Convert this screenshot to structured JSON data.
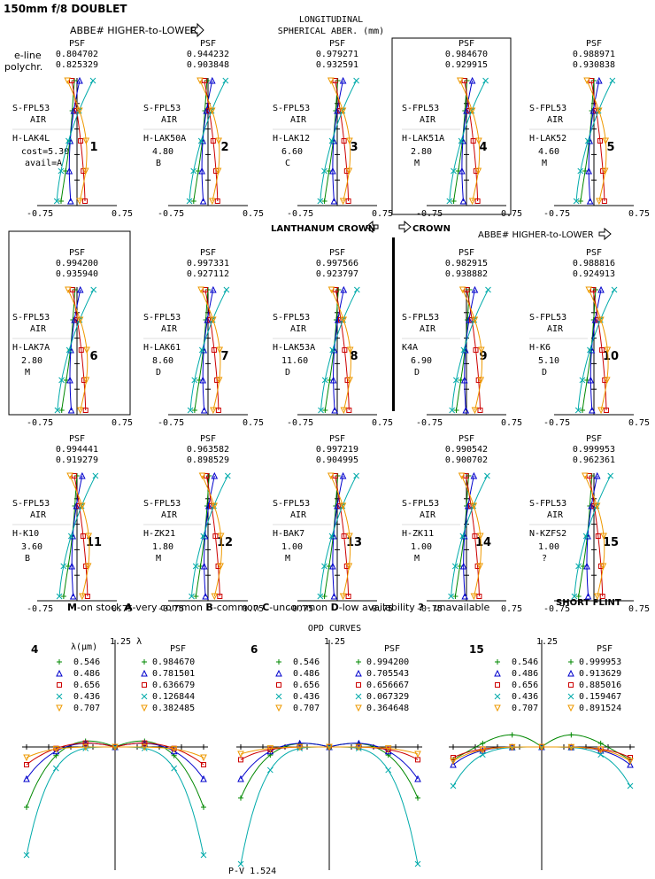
{
  "header": {
    "title": "150mm f/8 DOUBLET",
    "abbe_top": "ABBE# HIGHER-to-LOWER",
    "lsa_title_1": "LONGITUDINAL",
    "lsa_title_2": "SPHERICAL ABER. (mm)",
    "eline": "e-line",
    "polychr": "polychr."
  },
  "panel_labels": {
    "psf": "PSF",
    "front": "S-FPL53",
    "air": "AIR",
    "axis_min": "-0.75",
    "axis_max": "0.75"
  },
  "panels": [
    {
      "num": "1",
      "psf_e": "0.804702",
      "psf_p": "0.825329",
      "glass": "H-LAK4L",
      "cost": "cost=5.30",
      "avail": "avail=A"
    },
    {
      "num": "2",
      "psf_e": "0.944232",
      "psf_p": "0.903848",
      "glass": "H-LAK50A",
      "cost": "4.80",
      "avail": "B"
    },
    {
      "num": "3",
      "psf_e": "0.979271",
      "psf_p": "0.932591",
      "glass": "H-LAK12",
      "cost": "6.60",
      "avail": "C"
    },
    {
      "num": "4",
      "psf_e": "0.984670",
      "psf_p": "0.929915",
      "glass": "H-LAK51A",
      "cost": "2.80",
      "avail": "M"
    },
    {
      "num": "5",
      "psf_e": "0.988971",
      "psf_p": "0.930838",
      "glass": "H-LAK52",
      "cost": "4.60",
      "avail": "M"
    },
    {
      "num": "6",
      "psf_e": "0.994200",
      "psf_p": "0.935940",
      "glass": "H-LAK7A",
      "cost": "2.80",
      "avail": "M"
    },
    {
      "num": "7",
      "psf_e": "0.997331",
      "psf_p": "0.927112",
      "glass": "H-LAK61",
      "cost": "8.60",
      "avail": "D"
    },
    {
      "num": "8",
      "psf_e": "0.997566",
      "psf_p": "0.923797",
      "glass": "H-LAK53A",
      "cost": "11.60",
      "avail": "D"
    },
    {
      "num": "9",
      "psf_e": "0.982915",
      "psf_p": "0.938882",
      "glass": "K4A",
      "cost": "6.90",
      "avail": "D"
    },
    {
      "num": "10",
      "psf_e": "0.988816",
      "psf_p": "0.924913",
      "glass": "H-K6",
      "cost": "5.10",
      "avail": "D"
    },
    {
      "num": "11",
      "psf_e": "0.994441",
      "psf_p": "0.919279",
      "glass": "H-K10",
      "cost": "3.60",
      "avail": "B"
    },
    {
      "num": "12",
      "psf_e": "0.963582",
      "psf_p": "0.898529",
      "glass": "H-ZK21",
      "cost": "1.80",
      "avail": "M"
    },
    {
      "num": "13",
      "psf_e": "0.997219",
      "psf_p": "0.904995",
      "glass": "H-BAK7",
      "cost": "1.00",
      "avail": "M"
    },
    {
      "num": "14",
      "psf_e": "0.990542",
      "psf_p": "0.900702",
      "glass": "H-ZK11",
      "cost": "1.00",
      "avail": "M"
    },
    {
      "num": "15",
      "psf_e": "0.999953",
      "psf_p": "0.962361",
      "glass": "N-KZFS2",
      "cost": "1.00",
      "avail": "?"
    }
  ],
  "row_labels": {
    "lanthanum": "LANTHANUM CROWN",
    "crown": "CROWN",
    "abbe_mid": "ABBE# HIGHER-to-LOWER",
    "short_flint": "SHORT FLINT"
  },
  "legend_line": {
    "M": "M",
    "M_text": "-on stock ",
    "A": "A",
    "A_text": "-very common ",
    "B": "B",
    "B_text": "-common ",
    "C": "C",
    "C_text": "-uncommon ",
    "D": "D",
    "D_text": "-low availability ",
    "Q": "?",
    "Q_text": " - unavailable"
  },
  "opd": {
    "title": "OPD CURVES",
    "lambda_header": "λ(μm)",
    "psf_header": "PSF",
    "wavelengths": [
      "0.546",
      "0.486",
      "0.656",
      "0.436",
      "0.707"
    ],
    "colors": [
      "#008800",
      "#0000cc",
      "#cc0000",
      "#00aaaa",
      "#ee9900"
    ],
    "marker_glyphs": [
      "+",
      "△",
      "□",
      "✕",
      "▽"
    ],
    "blocks": [
      {
        "num": "4",
        "scale": "1.25 λ",
        "psf": [
          "0.984670",
          "0.781501",
          "0.636679",
          "0.126844",
          "0.382485"
        ]
      },
      {
        "num": "6",
        "scale": "1.25",
        "psf": [
          "0.994200",
          "0.705543",
          "0.656667",
          "0.067329",
          "0.364648"
        ]
      },
      {
        "num": "15",
        "scale": "1.25",
        "psf": [
          "0.999953",
          "0.913629",
          "0.885016",
          "0.159467",
          "0.891524"
        ]
      }
    ],
    "pv_label": "P-V 1.524"
  }
}
